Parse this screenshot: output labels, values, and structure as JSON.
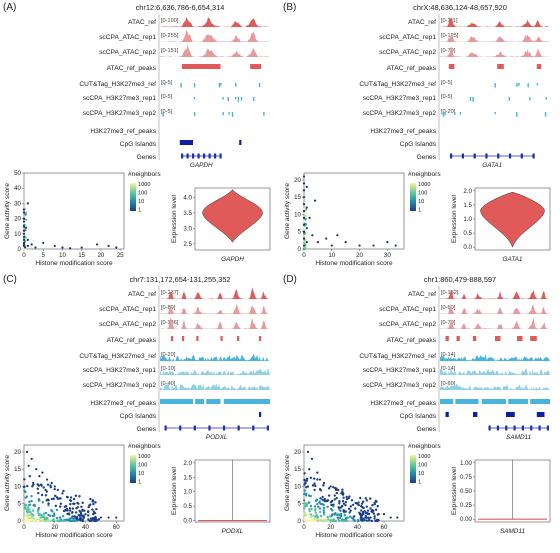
{
  "track_labels": [
    "ATAC_ref",
    "scCPA_ATAC_rep1",
    "scCPA_ATAC_rep2",
    "ATAC_ref_peaks",
    "CUT&Tag_H3K27me3_ref",
    "scCPA_H3K27me3_rep1",
    "scCPA_H3K27me3_rep2",
    "H3K27me3_ref_peaks",
    "CpG Islands",
    "Genes"
  ],
  "colors": {
    "atac": "#e05a5a",
    "atac_light": "#e89a9a",
    "h3k": "#49b3dc",
    "h3k_light": "#8fcfe8",
    "gene": "#1d2faa",
    "cpg": "#0e1fa0"
  },
  "common": {
    "scatter_ylabel": "Gene activity score",
    "scatter_xlabel": "Histone modification score",
    "violin_ylabel": "Expression level",
    "legend_title": "#neighbors",
    "legend_ticks": [
      "1000",
      "100",
      "10",
      "1"
    ]
  },
  "panels": [
    {
      "label": "(A)",
      "coord": "chr12:6,636,786-6,654,314",
      "gene": "GAPDH",
      "ranges": [
        "[0-190]",
        "[0-255]",
        "[0-151]",
        "",
        "[0-5]",
        "[0-5]",
        "[0-5]"
      ],
      "active": "atac",
      "chart_data": {
        "type": "scatter",
        "ylabel": "Gene activity score",
        "xlabel": "Histone modification score",
        "xlim": [
          0,
          26
        ],
        "ylim": [
          0,
          50
        ],
        "xticks": [
          "0",
          "5",
          "10",
          "15",
          "20",
          "25"
        ],
        "yticks": [
          "0",
          "10",
          "20",
          "30",
          "40",
          "50"
        ],
        "points": [
          [
            0,
            26
          ],
          [
            0,
            24
          ],
          [
            0,
            20
          ],
          [
            0,
            18
          ],
          [
            0,
            15
          ],
          [
            0,
            12
          ],
          [
            0,
            10
          ],
          [
            0,
            8
          ],
          [
            0,
            6
          ],
          [
            0,
            4
          ],
          [
            0,
            3
          ],
          [
            0,
            2
          ],
          [
            0.3,
            1
          ],
          [
            1,
            6
          ],
          [
            1,
            2
          ],
          [
            2,
            3
          ],
          [
            3,
            1
          ],
          [
            5,
            4
          ],
          [
            8,
            2
          ],
          [
            10,
            1
          ],
          [
            15,
            1
          ],
          [
            19,
            3
          ],
          [
            22,
            2
          ],
          [
            24,
            1
          ],
          [
            12,
            0.5
          ],
          [
            1,
            30
          ],
          [
            0.5,
            14
          ]
        ]
      },
      "violin": {
        "ylabel": "Expression level",
        "yticks": [
          "2.5",
          "3.0",
          "3.5",
          "4.0"
        ],
        "ylim": [
          2.3,
          4.3
        ],
        "shape": "wide"
      }
    },
    {
      "label": "(B)",
      "coord": "chrX:48,636,124-48,657,920",
      "gene": "GATA1",
      "ranges": [
        "[0-111]",
        "[0-125]",
        "[0-79]",
        "",
        "[0-5]",
        "[0-5]",
        "[0-20]"
      ],
      "active": "atac",
      "chart_data": {
        "type": "scatter",
        "ylabel": "Gene activity score",
        "xlabel": "Histone modification score",
        "xlim": [
          0,
          36
        ],
        "ylim": [
          0,
          22
        ],
        "xticks": [
          "0",
          "10",
          "20",
          "30"
        ],
        "yticks": [
          "0",
          "5",
          "10",
          "15",
          "20"
        ],
        "points": [
          [
            0,
            21
          ],
          [
            0,
            19
          ],
          [
            0,
            17
          ],
          [
            0,
            15
          ],
          [
            0,
            13
          ],
          [
            0,
            11
          ],
          [
            0,
            9
          ],
          [
            0,
            7
          ],
          [
            0,
            5
          ],
          [
            0,
            3
          ],
          [
            0,
            1
          ],
          [
            1,
            18
          ],
          [
            1,
            12
          ],
          [
            1,
            6
          ],
          [
            1,
            2
          ],
          [
            2,
            9
          ],
          [
            3,
            4
          ],
          [
            5,
            2
          ],
          [
            8,
            3
          ],
          [
            10,
            1
          ],
          [
            12,
            4
          ],
          [
            15,
            2
          ],
          [
            20,
            1
          ],
          [
            25,
            1
          ],
          [
            30,
            2
          ],
          [
            33,
            1
          ],
          [
            4,
            14
          ]
        ]
      },
      "violin": {
        "ylabel": "Expression level",
        "yticks": [
          "0.0",
          "0.5",
          "1.0",
          "1.5",
          "2.0"
        ],
        "ylim": [
          -0.1,
          2.1
        ],
        "shape": "wide2"
      }
    },
    {
      "label": "(C)",
      "coord": "chr7:131,172,654-131,255,352",
      "gene": "PODXL",
      "ranges": [
        "[0-137]",
        "[0-89]",
        "[0-136]",
        "",
        "[0-20]",
        "[0-10]",
        "[0-40]"
      ],
      "active": "h3k",
      "chart_data": {
        "type": "scatter",
        "ylabel": "Gene activity score",
        "xlabel": "Histone modification score",
        "xlim": [
          0,
          65
        ],
        "ylim": [
          0,
          22
        ],
        "xticks": [
          "0",
          "20",
          "40",
          "60"
        ],
        "yticks": [
          "0",
          "5",
          "10",
          "15",
          "20"
        ],
        "points": [
          [
            2,
            20
          ],
          [
            5,
            18
          ],
          [
            3,
            16
          ],
          [
            8,
            15
          ],
          [
            10,
            13
          ],
          [
            12,
            14
          ],
          [
            15,
            12
          ],
          [
            18,
            11
          ],
          [
            20,
            10
          ],
          [
            22,
            9
          ],
          [
            25,
            8
          ],
          [
            28,
            7
          ],
          [
            30,
            6
          ],
          [
            32,
            5
          ],
          [
            35,
            4
          ],
          [
            38,
            3
          ],
          [
            40,
            2
          ],
          [
            45,
            2
          ],
          [
            50,
            1
          ],
          [
            55,
            1
          ],
          [
            60,
            1
          ],
          [
            6,
            11
          ],
          [
            14,
            9
          ],
          [
            24,
            5
          ],
          [
            16,
            6
          ],
          [
            30,
            3
          ],
          [
            42,
            4
          ]
        ]
      },
      "violin": {
        "ylabel": "Expression level",
        "yticks": [
          "0.0",
          "0.5",
          "1.0",
          "1.5",
          "2.0"
        ],
        "ylim": [
          -0.05,
          2.1
        ],
        "shape": "line"
      }
    },
    {
      "label": "(D)",
      "coord": "chr1:860,479-888,597",
      "gene": "SAMD11",
      "ranges": [
        "[0-152]",
        "[0-60]",
        "[0-70]",
        "",
        "[0-14]",
        "[0-14]",
        "[0-60]"
      ],
      "active": "h3k",
      "chart_data": {
        "type": "scatter",
        "ylabel": "Gene activity score",
        "xlabel": "Histone modification score",
        "xlim": [
          0,
          75
        ],
        "ylim": [
          0,
          22
        ],
        "xticks": [
          "0",
          "20",
          "40",
          "60"
        ],
        "yticks": [
          "0",
          "5",
          "10",
          "15",
          "20"
        ],
        "points": [
          [
            3,
            20
          ],
          [
            6,
            18
          ],
          [
            4,
            15
          ],
          [
            10,
            14
          ],
          [
            12,
            12
          ],
          [
            15,
            11
          ],
          [
            20,
            10
          ],
          [
            24,
            9
          ],
          [
            28,
            8
          ],
          [
            32,
            7
          ],
          [
            36,
            6
          ],
          [
            40,
            5
          ],
          [
            44,
            4
          ],
          [
            48,
            3
          ],
          [
            52,
            3
          ],
          [
            56,
            2
          ],
          [
            60,
            2
          ],
          [
            65,
            1
          ],
          [
            70,
            1
          ],
          [
            8,
            9
          ],
          [
            18,
            6
          ],
          [
            26,
            4
          ],
          [
            35,
            3
          ],
          [
            42,
            2
          ],
          [
            14,
            7
          ],
          [
            30,
            5
          ],
          [
            50,
            1
          ]
        ]
      },
      "violin": {
        "ylabel": "Expression level",
        "yticks": [
          "0.00",
          "0.25",
          "0.50",
          "0.75",
          "1.00"
        ],
        "ylim": [
          -0.05,
          1.05
        ],
        "shape": "line"
      }
    }
  ]
}
